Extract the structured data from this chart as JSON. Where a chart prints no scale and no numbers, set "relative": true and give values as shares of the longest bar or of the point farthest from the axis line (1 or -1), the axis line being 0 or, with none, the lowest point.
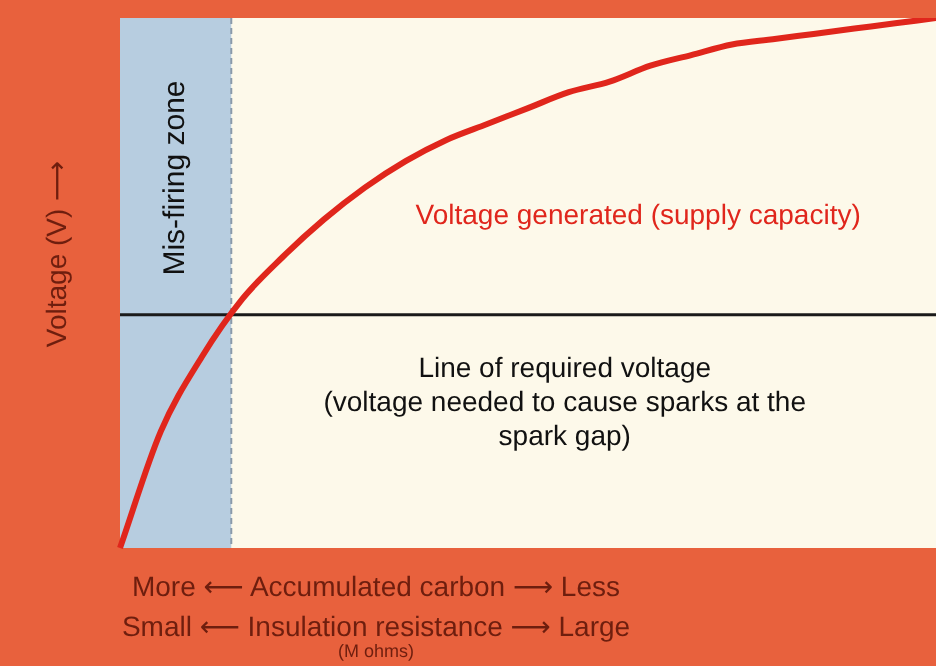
{
  "chart_data": {
    "type": "line",
    "relative": true,
    "categories": [
      null,
      null,
      null,
      null,
      null,
      null,
      null,
      null,
      null,
      null,
      null,
      null,
      null,
      null,
      null,
      null,
      null,
      null,
      null,
      null,
      null
    ],
    "series": [
      {
        "name": "Voltage generated (supply capacity)",
        "color": "#e0261c",
        "values": [
          0,
          0.22,
          0.36,
          0.47,
          0.55,
          0.62,
          0.68,
          0.73,
          0.77,
          0.8,
          0.83,
          0.86,
          0.88,
          0.91,
          0.93,
          0.95,
          0.96,
          0.97,
          0.98,
          0.99,
          1
        ]
      }
    ],
    "ylabel": "Voltage (V) ⟶",
    "xlabel": "More ⟵ Accumulated carbon ⟶ Less\nSmall ⟵ Insulation resistance ⟶ Large\n(M ohms)",
    "ref_lines": [
      {
        "axis": "y",
        "value": 0.44,
        "label": "Line of required voltage\n(voltage needed to cause sparks at the\nspark gap)",
        "color": "#1a1a1a"
      }
    ],
    "annotations": [
      "Mis-firing zone"
    ]
  }
}
